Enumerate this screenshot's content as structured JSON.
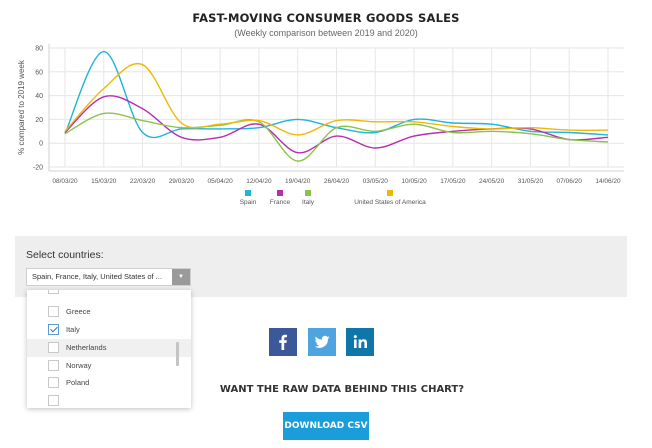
{
  "chart_data": {
    "type": "line",
    "title": "FAST-MOVING CONSUMER GOODS SALES",
    "subtitle": "(Weekly comparison between 2019 and 2020)",
    "ylabel": "% compared to 2019 week",
    "xlabel": "",
    "ylim": [
      -20,
      80
    ],
    "yticks": [
      -20,
      0,
      20,
      40,
      60,
      80
    ],
    "grid": true,
    "legend_position": "bottom",
    "x": [
      "08/03/20",
      "15/03/20",
      "22/03/20",
      "29/03/20",
      "05/04/20",
      "12/04/20",
      "19/04/20",
      "26/04/20",
      "03/05/20",
      "10/05/20",
      "17/05/20",
      "24/05/20",
      "31/05/20",
      "07/06/20",
      "14/06/20"
    ],
    "series": [
      {
        "name": "Spain",
        "color": "#1fb4dc",
        "values": [
          8,
          77,
          9,
          12,
          12,
          13,
          20,
          13,
          9,
          20,
          17,
          16,
          10,
          9,
          7
        ]
      },
      {
        "name": "France",
        "color": "#b62fb1",
        "values": [
          9,
          39,
          29,
          5,
          5,
          16,
          -8,
          6,
          -4,
          6,
          10,
          12,
          12,
          3,
          5
        ]
      },
      {
        "name": "Italy",
        "color": "#8bc34a",
        "values": [
          8,
          25,
          19,
          13,
          15,
          18,
          -15,
          13,
          10,
          16,
          9,
          10,
          8,
          3,
          1
        ]
      },
      {
        "name": "United States of America",
        "color": "#f2b705",
        "values": [
          10,
          46,
          66,
          17,
          16,
          19,
          7,
          19,
          18,
          18,
          14,
          12,
          13,
          11,
          11
        ]
      }
    ]
  },
  "selector": {
    "label": "Select countries:",
    "value": "Spain, France, Italy, United States of ...",
    "arrow_icon": "▼",
    "options": [
      {
        "label": "Greece",
        "checked": false,
        "highlighted": false
      },
      {
        "label": "Italy",
        "checked": true,
        "highlighted": false
      },
      {
        "label": "Netherlands",
        "checked": false,
        "highlighted": true
      },
      {
        "label": "Norway",
        "checked": false,
        "highlighted": false
      },
      {
        "label": "Poland",
        "checked": false,
        "highlighted": false
      }
    ]
  },
  "share": {
    "facebook_icon": "facebook-icon",
    "twitter_icon": "twitter-icon",
    "linkedin_icon": "linkedin-icon",
    "linkedin_text": "in",
    "facebook_text": "f"
  },
  "raw_data": {
    "title": "WANT THE RAW DATA BEHIND THIS CHART?",
    "button": "DOWNLOAD CSV",
    "button_color": "#1a9dd9"
  }
}
